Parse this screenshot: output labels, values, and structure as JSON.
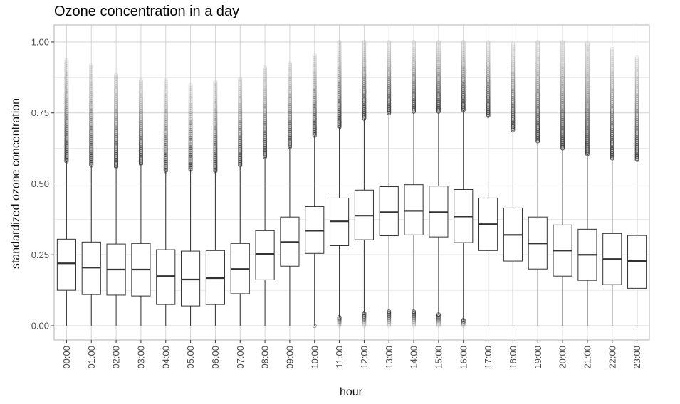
{
  "chart_data": {
    "type": "boxplot",
    "title": "Ozone concentration in a day",
    "xlabel": "hour",
    "ylabel": "standardized ozone concentration",
    "ylim": [
      -0.05,
      1.06
    ],
    "yticks": [
      0.0,
      0.25,
      0.5,
      0.75,
      1.0
    ],
    "ytick_labels": [
      "0.00",
      "0.25",
      "0.50",
      "0.75",
      "1.00"
    ],
    "grid": true,
    "categories": [
      "00:00",
      "01:00",
      "02:00",
      "03:00",
      "04:00",
      "05:00",
      "06:00",
      "07:00",
      "08:00",
      "09:00",
      "10:00",
      "11:00",
      "12:00",
      "13:00",
      "14:00",
      "15:00",
      "16:00",
      "17:00",
      "18:00",
      "19:00",
      "20:00",
      "21:00",
      "22:00",
      "23:00"
    ],
    "boxes": [
      {
        "q1": 0.125,
        "median": 0.22,
        "q3": 0.305,
        "whisker_low": 0.0,
        "whisker_high": 0.58,
        "outlier_low": null,
        "outlier_high": 0.935
      },
      {
        "q1": 0.11,
        "median": 0.205,
        "q3": 0.295,
        "whisker_low": 0.0,
        "whisker_high": 0.565,
        "outlier_low": null,
        "outlier_high": 0.92
      },
      {
        "q1": 0.108,
        "median": 0.198,
        "q3": 0.288,
        "whisker_low": 0.0,
        "whisker_high": 0.56,
        "outlier_low": null,
        "outlier_high": 0.885
      },
      {
        "q1": 0.105,
        "median": 0.198,
        "q3": 0.29,
        "whisker_low": 0.0,
        "whisker_high": 0.57,
        "outlier_low": null,
        "outlier_high": 0.865
      },
      {
        "q1": 0.075,
        "median": 0.175,
        "q3": 0.268,
        "whisker_low": 0.0,
        "whisker_high": 0.545,
        "outlier_low": null,
        "outlier_high": 0.865
      },
      {
        "q1": 0.07,
        "median": 0.163,
        "q3": 0.263,
        "whisker_low": 0.0,
        "whisker_high": 0.55,
        "outlier_low": null,
        "outlier_high": 0.85
      },
      {
        "q1": 0.075,
        "median": 0.168,
        "q3": 0.265,
        "whisker_low": 0.0,
        "whisker_high": 0.545,
        "outlier_low": null,
        "outlier_high": 0.86
      },
      {
        "q1": 0.113,
        "median": 0.2,
        "q3": 0.29,
        "whisker_low": 0.0,
        "whisker_high": 0.565,
        "outlier_low": null,
        "outlier_high": 0.87
      },
      {
        "q1": 0.162,
        "median": 0.253,
        "q3": 0.335,
        "whisker_low": 0.0,
        "whisker_high": 0.595,
        "outlier_low": null,
        "outlier_high": 0.91
      },
      {
        "q1": 0.21,
        "median": 0.295,
        "q3": 0.383,
        "whisker_low": 0.0,
        "whisker_high": 0.63,
        "outlier_low": null,
        "outlier_high": 0.925
      },
      {
        "q1": 0.255,
        "median": 0.335,
        "q3": 0.42,
        "whisker_low": 0.0,
        "whisker_high": 0.67,
        "outlier_low": 0.0,
        "outlier_high": 0.955
      },
      {
        "q1": 0.282,
        "median": 0.368,
        "q3": 0.45,
        "whisker_low": 0.03,
        "whisker_high": 0.7,
        "outlier_low": 0.0,
        "outlier_high": 1.0
      },
      {
        "q1": 0.303,
        "median": 0.388,
        "q3": 0.478,
        "whisker_low": 0.045,
        "whisker_high": 0.73,
        "outlier_low": 0.0,
        "outlier_high": 1.0
      },
      {
        "q1": 0.317,
        "median": 0.4,
        "q3": 0.49,
        "whisker_low": 0.05,
        "whisker_high": 0.75,
        "outlier_low": 0.0,
        "outlier_high": 1.0
      },
      {
        "q1": 0.32,
        "median": 0.405,
        "q3": 0.497,
        "whisker_low": 0.05,
        "whisker_high": 0.755,
        "outlier_low": 0.0,
        "outlier_high": 1.0
      },
      {
        "q1": 0.313,
        "median": 0.4,
        "q3": 0.492,
        "whisker_low": 0.04,
        "whisker_high": 0.755,
        "outlier_low": 0.0,
        "outlier_high": 1.0
      },
      {
        "q1": 0.293,
        "median": 0.385,
        "q3": 0.48,
        "whisker_low": 0.02,
        "whisker_high": 0.76,
        "outlier_low": 0.0,
        "outlier_high": 1.0
      },
      {
        "q1": 0.265,
        "median": 0.358,
        "q3": 0.45,
        "whisker_low": 0.0,
        "whisker_high": 0.74,
        "outlier_low": null,
        "outlier_high": 1.0
      },
      {
        "q1": 0.228,
        "median": 0.32,
        "q3": 0.415,
        "whisker_low": 0.0,
        "whisker_high": 0.69,
        "outlier_low": null,
        "outlier_high": 0.995
      },
      {
        "q1": 0.2,
        "median": 0.29,
        "q3": 0.383,
        "whisker_low": 0.0,
        "whisker_high": 0.65,
        "outlier_low": null,
        "outlier_high": 1.0
      },
      {
        "q1": 0.175,
        "median": 0.265,
        "q3": 0.355,
        "whisker_low": 0.0,
        "whisker_high": 0.625,
        "outlier_low": null,
        "outlier_high": 1.0
      },
      {
        "q1": 0.16,
        "median": 0.25,
        "q3": 0.34,
        "whisker_low": 0.0,
        "whisker_high": 0.605,
        "outlier_low": null,
        "outlier_high": 0.995
      },
      {
        "q1": 0.145,
        "median": 0.235,
        "q3": 0.325,
        "whisker_low": 0.0,
        "whisker_high": 0.59,
        "outlier_low": null,
        "outlier_high": 0.975
      },
      {
        "q1": 0.132,
        "median": 0.228,
        "q3": 0.318,
        "whisker_low": 0.0,
        "whisker_high": 0.585,
        "outlier_low": null,
        "outlier_high": 0.945
      }
    ],
    "colors": {
      "panel_border": "#b3b3b3",
      "grid": "#d6d6d6",
      "box": "#333333",
      "outlier": "#333333"
    }
  }
}
